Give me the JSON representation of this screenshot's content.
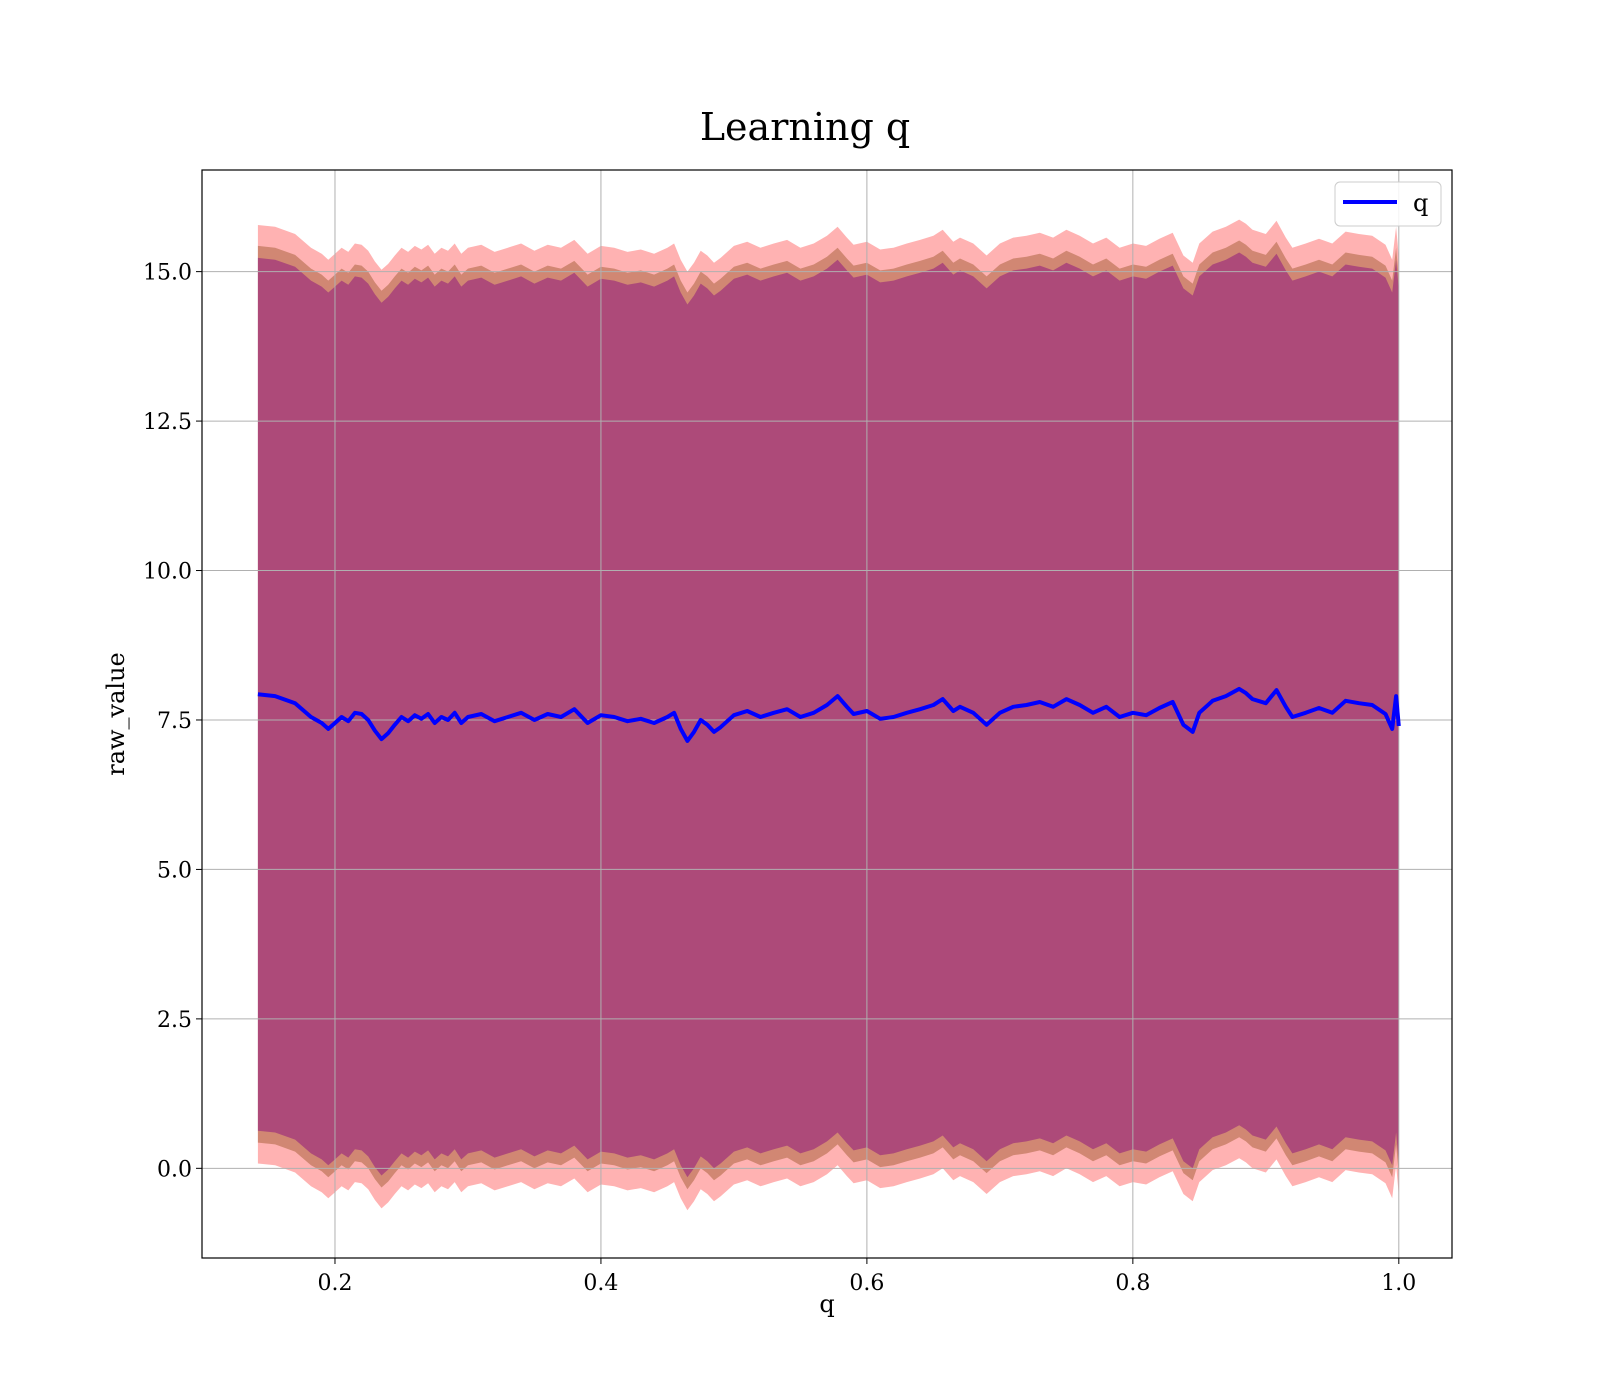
{
  "chart_data": {
    "type": "line",
    "title": "Learning q",
    "xlabel": "q",
    "ylabel": "raw_value",
    "xlim": [
      0.1,
      1.04
    ],
    "ylim": [
      -1.5,
      16.7
    ],
    "xticks": [
      0.2,
      0.4,
      0.6,
      0.8,
      1.0
    ],
    "xtick_labels": [
      "0.2",
      "0.4",
      "0.6",
      "0.8",
      "1.0"
    ],
    "yticks": [
      0.0,
      2.5,
      5.0,
      7.5,
      10.0,
      12.5,
      15.0
    ],
    "ytick_labels": [
      "0.0",
      "2.5",
      "5.0",
      "7.5",
      "10.0",
      "12.5",
      "15.0"
    ],
    "grid": true,
    "legend_position": "top-right",
    "legend": [
      "q"
    ],
    "colors": {
      "line": "#0000ff",
      "band_outer": "#ff0000",
      "band_inner": "#8b4513",
      "band_core": "#800080"
    },
    "bands": [
      {
        "offset": 7.85,
        "color": "#ff0000",
        "opacity": 0.3
      },
      {
        "offset": 7.5,
        "color": "#8b4513",
        "opacity": 0.4
      },
      {
        "offset": 7.3,
        "color": "#800080",
        "opacity": 0.45
      }
    ],
    "series": [
      {
        "name": "q",
        "x": [
          0.142,
          0.155,
          0.17,
          0.182,
          0.19,
          0.195,
          0.2,
          0.205,
          0.21,
          0.215,
          0.22,
          0.225,
          0.23,
          0.235,
          0.24,
          0.245,
          0.25,
          0.255,
          0.26,
          0.265,
          0.27,
          0.275,
          0.28,
          0.285,
          0.29,
          0.295,
          0.3,
          0.31,
          0.32,
          0.33,
          0.34,
          0.35,
          0.36,
          0.37,
          0.38,
          0.39,
          0.4,
          0.41,
          0.42,
          0.43,
          0.44,
          0.45,
          0.455,
          0.46,
          0.465,
          0.47,
          0.475,
          0.48,
          0.485,
          0.49,
          0.5,
          0.51,
          0.52,
          0.53,
          0.54,
          0.55,
          0.56,
          0.57,
          0.578,
          0.585,
          0.59,
          0.6,
          0.61,
          0.62,
          0.63,
          0.64,
          0.65,
          0.657,
          0.665,
          0.67,
          0.68,
          0.69,
          0.7,
          0.71,
          0.72,
          0.73,
          0.74,
          0.75,
          0.76,
          0.77,
          0.78,
          0.79,
          0.8,
          0.81,
          0.82,
          0.83,
          0.838,
          0.845,
          0.85,
          0.86,
          0.87,
          0.88,
          0.885,
          0.89,
          0.9,
          0.908,
          0.915,
          0.92,
          0.93,
          0.94,
          0.95,
          0.96,
          0.97,
          0.98,
          0.99,
          0.995,
          0.998,
          1.0
        ],
        "values": [
          7.93,
          7.9,
          7.78,
          7.55,
          7.45,
          7.35,
          7.45,
          7.55,
          7.48,
          7.62,
          7.6,
          7.5,
          7.32,
          7.18,
          7.28,
          7.42,
          7.55,
          7.48,
          7.58,
          7.52,
          7.6,
          7.45,
          7.55,
          7.5,
          7.62,
          7.45,
          7.55,
          7.6,
          7.48,
          7.55,
          7.62,
          7.5,
          7.6,
          7.55,
          7.68,
          7.45,
          7.58,
          7.55,
          7.48,
          7.52,
          7.45,
          7.55,
          7.62,
          7.35,
          7.15,
          7.3,
          7.5,
          7.42,
          7.3,
          7.38,
          7.58,
          7.65,
          7.55,
          7.62,
          7.68,
          7.55,
          7.62,
          7.75,
          7.9,
          7.72,
          7.6,
          7.65,
          7.52,
          7.55,
          7.62,
          7.68,
          7.75,
          7.85,
          7.65,
          7.72,
          7.62,
          7.42,
          7.62,
          7.72,
          7.75,
          7.8,
          7.72,
          7.85,
          7.75,
          7.62,
          7.72,
          7.55,
          7.62,
          7.58,
          7.7,
          7.8,
          7.42,
          7.3,
          7.62,
          7.82,
          7.9,
          8.02,
          7.95,
          7.85,
          7.78,
          8.0,
          7.72,
          7.55,
          7.62,
          7.7,
          7.62,
          7.82,
          7.78,
          7.75,
          7.6,
          7.35,
          7.9,
          7.4
        ]
      }
    ]
  }
}
